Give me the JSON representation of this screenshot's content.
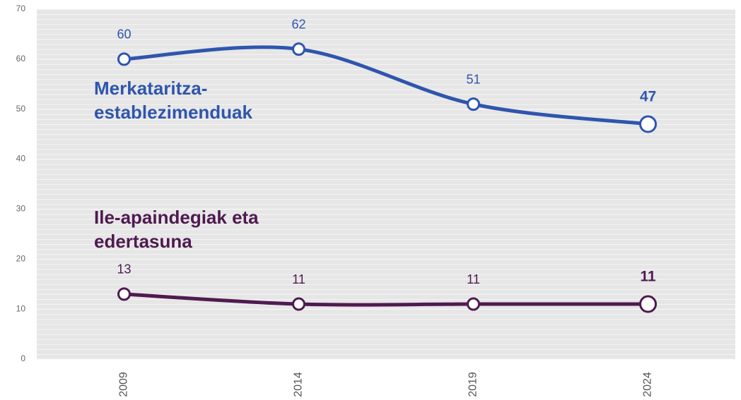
{
  "chart_data": {
    "type": "line",
    "categories": [
      "2009",
      "2014",
      "2019",
      "2024"
    ],
    "series": [
      {
        "name": "Merkataritza-establezimenduak",
        "color": "#2f55ad",
        "values": [
          60,
          62,
          51,
          47
        ]
      },
      {
        "name": "Ile-apaindegiak eta edertasuna",
        "color": "#4f1a50",
        "values": [
          13,
          11,
          11,
          11
        ]
      }
    ],
    "ylim": [
      0,
      70
    ],
    "yticks": [
      0,
      10,
      20,
      30,
      40,
      50,
      60,
      70
    ],
    "grid": true
  }
}
